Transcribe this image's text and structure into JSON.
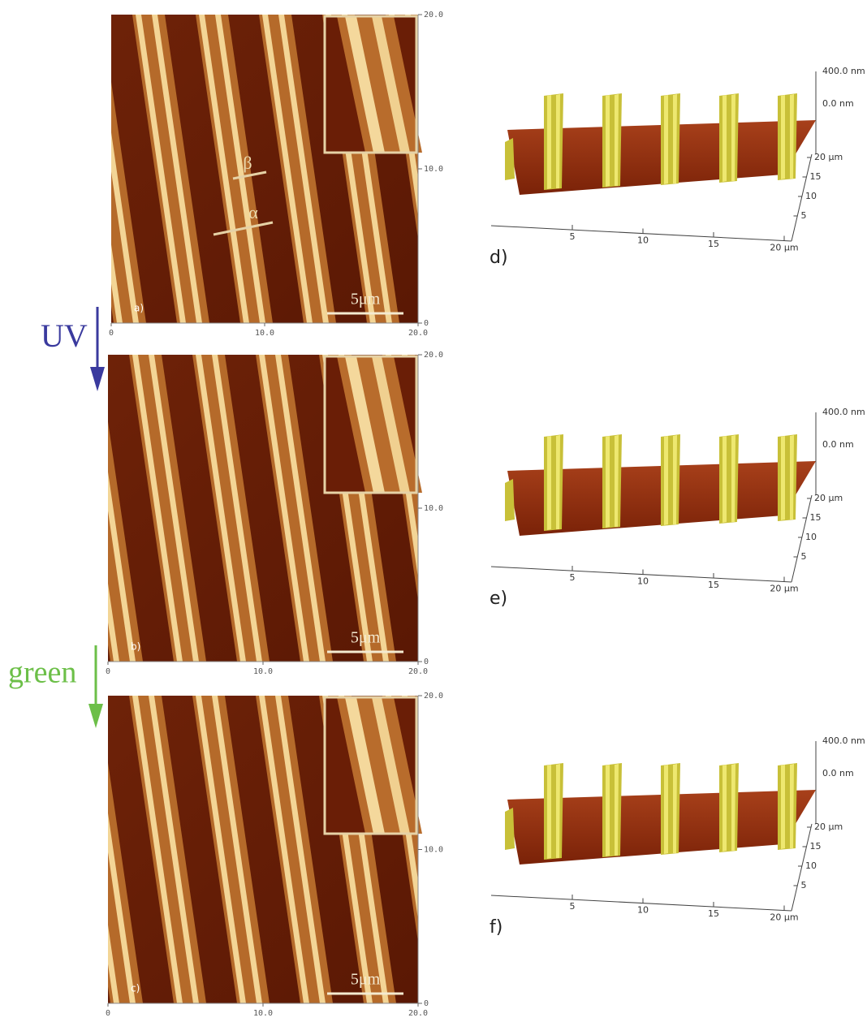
{
  "panels_2d": [
    {
      "label": "a)",
      "scale_bar": "5μm",
      "x_ticks": [
        "0",
        "10.0",
        "20.0"
      ],
      "y_ticks": [
        "20.0",
        "10.0",
        "0"
      ],
      "line_labels": [
        "β",
        "α"
      ]
    },
    {
      "label": "b)",
      "scale_bar": "5μm",
      "x_ticks": [
        "0",
        "10.0",
        "20.0"
      ],
      "y_ticks": [
        "20.0",
        "10.0",
        "0"
      ]
    },
    {
      "label": "c)",
      "scale_bar": "5μm",
      "x_ticks": [
        "0",
        "10.0",
        "20.0"
      ],
      "y_ticks": [
        "20.0",
        "10.0",
        "0"
      ]
    }
  ],
  "arrows": [
    {
      "label": "UV"
    },
    {
      "label": "green"
    }
  ],
  "panels_3d": [
    {
      "label": "d)",
      "z_labels": [
        "400.0 nm",
        "0.0 nm"
      ],
      "side_ticks": [
        "20 μm",
        "15",
        "10",
        "5"
      ],
      "x_ticks": [
        "5",
        "10",
        "15",
        "20 μm"
      ]
    },
    {
      "label": "e)",
      "z_labels": [
        "400.0 nm",
        "0.0 nm"
      ],
      "side_ticks": [
        "20 μm",
        "15",
        "10",
        "5"
      ],
      "x_ticks": [
        "5",
        "10",
        "15",
        "20 μm"
      ]
    },
    {
      "label": "f)",
      "z_labels": [
        "400.0 nm",
        "0.0 nm"
      ],
      "side_ticks": [
        "20 μm",
        "15",
        "10",
        "5"
      ],
      "x_ticks": [
        "5",
        "10",
        "15",
        "20 μm"
      ]
    }
  ]
}
